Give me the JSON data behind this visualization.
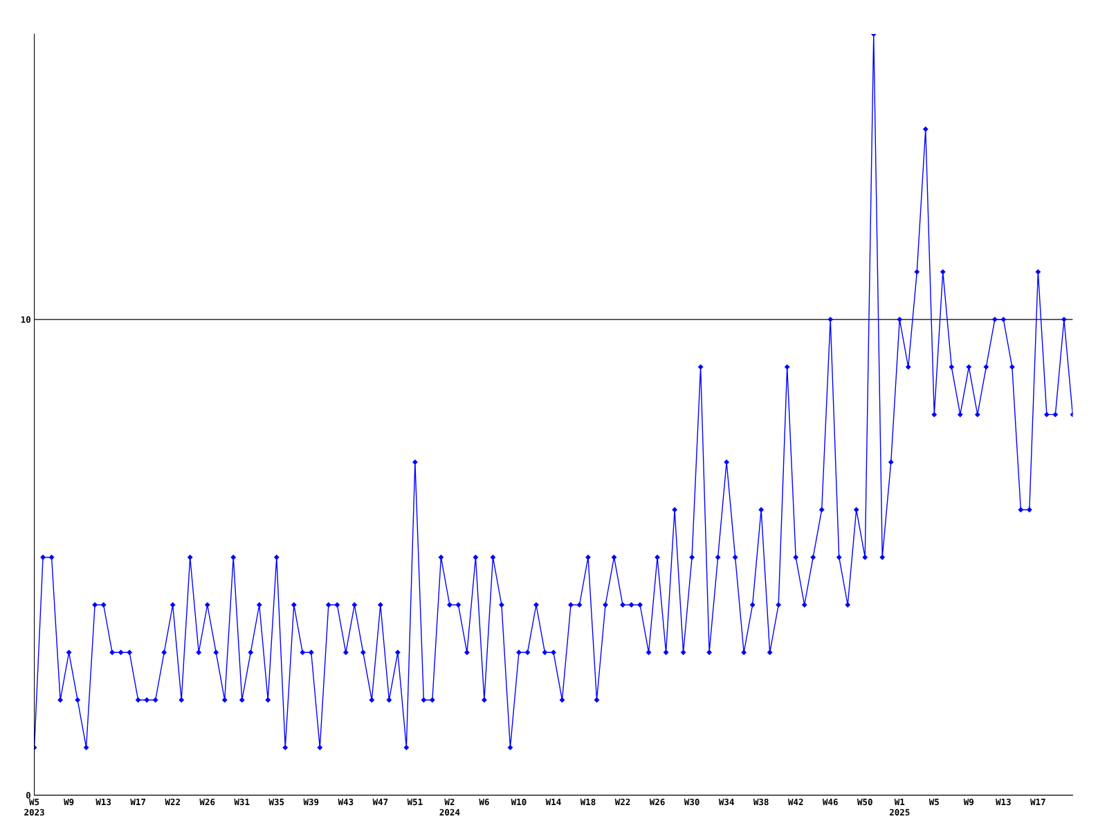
{
  "chart_data": {
    "type": "line",
    "categories": [
      "W5\n2023",
      null,
      null,
      null,
      "W9",
      null,
      null,
      null,
      "W13",
      null,
      null,
      null,
      "W17",
      null,
      null,
      null,
      "W22",
      null,
      null,
      null,
      "W26",
      null,
      null,
      null,
      "W31",
      null,
      null,
      null,
      "W35",
      null,
      null,
      null,
      "W39",
      null,
      null,
      null,
      "W43",
      null,
      null,
      null,
      "W47",
      null,
      null,
      null,
      "W51",
      null,
      null,
      null,
      "W2\n2024",
      null,
      null,
      null,
      "W6",
      null,
      null,
      null,
      "W10",
      null,
      null,
      null,
      "W14",
      null,
      null,
      null,
      "W18",
      null,
      null,
      null,
      "W22",
      null,
      null,
      null,
      "W26",
      null,
      null,
      null,
      "W30",
      null,
      null,
      null,
      "W34",
      null,
      null,
      null,
      "W38",
      null,
      null,
      null,
      "W42",
      null,
      null,
      null,
      "W46",
      null,
      null,
      null,
      "W50",
      null,
      null,
      null,
      "W1\n2025",
      null,
      null,
      null,
      "W5",
      null,
      null,
      null,
      "W9",
      null,
      null,
      null,
      "W13",
      null,
      null,
      null,
      "W17",
      null,
      null,
      null,
      null
    ],
    "series": [
      {
        "color": "#0000ff",
        "values": [
          1,
          5,
          5,
          2,
          3,
          2,
          1,
          4,
          4,
          3,
          3,
          3,
          2,
          2,
          2,
          3,
          4,
          2,
          5,
          3,
          4,
          3,
          2,
          5,
          2,
          3,
          4,
          2,
          5,
          1,
          4,
          3,
          3,
          1,
          4,
          4,
          3,
          4,
          3,
          2,
          4,
          2,
          3,
          1,
          7,
          2,
          2,
          5,
          4,
          4,
          3,
          5,
          2,
          5,
          4,
          1,
          3,
          3,
          4,
          3,
          3,
          2,
          4,
          4,
          5,
          2,
          4,
          5,
          4,
          4,
          4,
          3,
          5,
          3,
          6,
          3,
          5,
          9,
          3,
          5,
          7,
          5,
          3,
          4,
          6,
          3,
          4,
          9,
          5,
          4,
          5,
          6,
          10,
          5,
          4,
          6,
          5,
          16,
          5,
          7,
          10,
          9,
          11,
          14,
          8,
          11,
          9,
          8,
          9,
          8,
          9,
          10,
          10,
          9,
          6,
          6,
          11,
          8,
          8,
          10,
          8
        ]
      }
    ],
    "ylim": [
      0,
      16
    ],
    "yticks": [
      0,
      10
    ],
    "grid": "y",
    "marker": "diamond",
    "line_style": "solid",
    "legend": false
  }
}
